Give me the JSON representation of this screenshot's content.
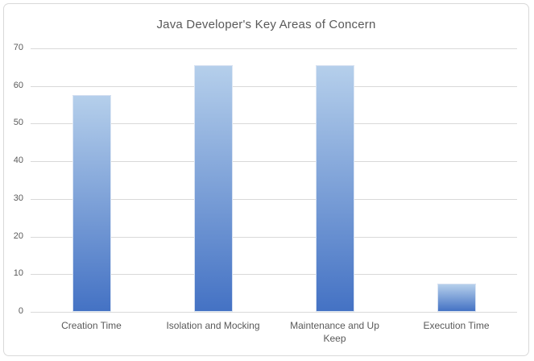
{
  "chart_data": {
    "type": "bar",
    "title": "Java Developer's Key Areas of Concern",
    "categories": [
      "Creation Time",
      "Isolation and Mocking",
      "Maintenance and Up Keep",
      "Execution Time"
    ],
    "values": [
      57.5,
      65.5,
      65.5,
      7.5
    ],
    "xlabel": "",
    "ylabel": "",
    "ylim": [
      0,
      70
    ],
    "ytick_step": 10,
    "yticks": [
      0,
      10,
      20,
      30,
      40,
      50,
      60,
      70
    ],
    "grid": true,
    "legend": false,
    "colors": {
      "bar_gradient_top": "#b5cfeb",
      "bar_gradient_bottom": "#4472c4",
      "gridline": "#d9d9d9",
      "axis_text": "#595959",
      "title_text": "#595959",
      "chart_border": "#d9d9d9",
      "background": "#ffffff"
    }
  }
}
